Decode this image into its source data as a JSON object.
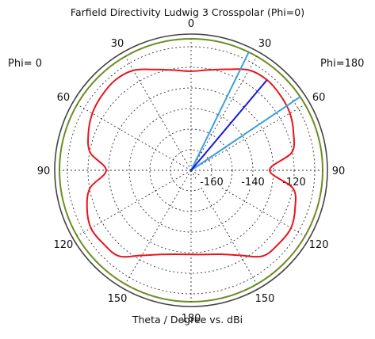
{
  "chart_data": {
    "type": "polar",
    "title": "Farfield Directivity Ludwig 3 Crosspolar (Phi=0)",
    "xlabel": "Theta / Degree vs. dBi",
    "phi_left_label": "Phi=  0",
    "phi_right_label": "Phi=180",
    "theta_ticks": [
      "0",
      "30",
      "60",
      "90",
      "120",
      "150",
      "180",
      "150",
      "120",
      "90",
      "60",
      "30"
    ],
    "r_ticks": [
      "-160",
      "-140",
      "-120"
    ],
    "rlim": [
      -170,
      -110
    ],
    "grid": true,
    "colors": {
      "pattern": "#e8141c",
      "reference": "#6b8e23",
      "outer_ring": "#444444",
      "main_lobe": "#1a1ad6",
      "beamwidth": "#3b9fe0"
    },
    "series": [
      {
        "name": "",
        "theta_deg": [
          0,
          10,
          20,
          30,
          40,
          50,
          60,
          70,
          80,
          90,
          100,
          110,
          120,
          130,
          140,
          150,
          160,
          170,
          180,
          190,
          200,
          210,
          220,
          230,
          240,
          250,
          260,
          270,
          280,
          290,
          300,
          310,
          320,
          330,
          340,
          350
        ],
        "dbi": [
          -121.9,
          -120.5,
          -117.8,
          -113.8,
          -112.7,
          -113.4,
          -114.6,
          -117.1,
          -120.4,
          -131.9,
          -119.8,
          -116.3,
          -114.0,
          -114.5,
          -115.7,
          -122.3,
          -126.6,
          -128.5,
          -129.1,
          -128.6,
          -126.5,
          -122.3,
          -115.6,
          -114.5,
          -113.9,
          -116.3,
          -120.2,
          -128.8,
          -120.3,
          -117.0,
          -114.7,
          -113.5,
          -112.8,
          -114.0,
          -117.9,
          -120.6
        ]
      }
    ],
    "markers": {
      "main_lobe_direction_deg": 40,
      "beamwidth_lines_deg": [
        26,
        56
      ],
      "main_lobe_magnitude_dbi": -112.7
    }
  }
}
